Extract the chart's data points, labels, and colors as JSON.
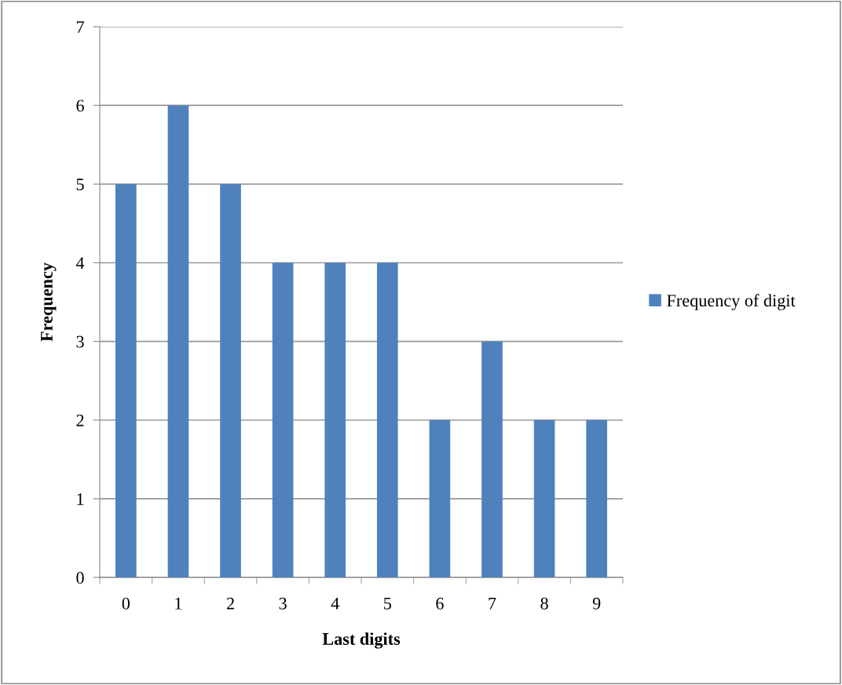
{
  "chart_data": {
    "type": "bar",
    "xlabel": "Last digits",
    "ylabel": "Frequency",
    "categories": [
      "0",
      "1",
      "2",
      "3",
      "4",
      "5",
      "6",
      "7",
      "8",
      "9"
    ],
    "series": [
      {
        "name": "Frequency of digit",
        "color": "#4f81bd",
        "values": [
          5,
          6,
          5,
          4,
          4,
          4,
          2,
          3,
          2,
          2
        ]
      }
    ],
    "ylim": [
      0,
      7
    ],
    "yticks": [
      0,
      1,
      2,
      3,
      4,
      5,
      6,
      7
    ],
    "grid": "y",
    "legend": "right"
  }
}
